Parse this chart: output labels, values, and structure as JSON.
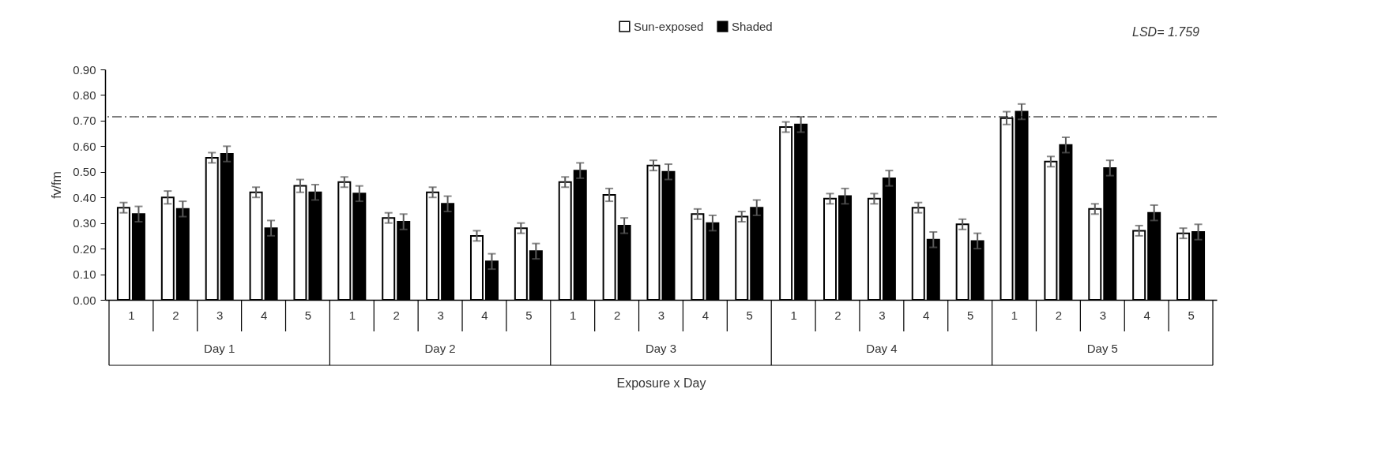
{
  "chart_data": {
    "type": "bar",
    "xlabel": "Exposure x Day",
    "ylabel": "fv/fm",
    "categories": [
      "1",
      "2",
      "3",
      "4",
      "5",
      "1",
      "2",
      "3",
      "4",
      "5",
      "1",
      "2",
      "3",
      "4",
      "5",
      "1",
      "2",
      "3",
      "4",
      "5",
      "1",
      "2",
      "3",
      "4",
      "5"
    ],
    "series": [
      {
        "name": "Sun-exposed",
        "color": "#ffffff",
        "values": [
          0.36,
          0.4,
          0.555,
          0.42,
          0.445,
          0.46,
          0.32,
          0.42,
          0.25,
          0.28,
          0.46,
          0.41,
          0.525,
          0.335,
          0.325,
          0.675,
          0.395,
          0.395,
          0.36,
          0.295,
          0.71,
          0.54,
          0.355,
          0.27,
          0.26
        ],
        "errors": [
          0.02,
          0.025,
          0.02,
          0.02,
          0.025,
          0.02,
          0.02,
          0.02,
          0.02,
          0.02,
          0.02,
          0.025,
          0.02,
          0.02,
          0.02,
          0.02,
          0.02,
          0.02,
          0.02,
          0.02,
          0.025,
          0.02,
          0.02,
          0.02,
          0.02
        ]
      },
      {
        "name": "Shaded",
        "color": "#000000",
        "values": [
          0.335,
          0.355,
          0.57,
          0.28,
          0.42,
          0.415,
          0.305,
          0.375,
          0.15,
          0.19,
          0.505,
          0.29,
          0.5,
          0.3,
          0.36,
          0.685,
          0.405,
          0.475,
          0.235,
          0.23,
          0.735,
          0.605,
          0.515,
          0.34,
          0.265
        ],
        "errors": [
          0.03,
          0.03,
          0.03,
          0.03,
          0.03,
          0.03,
          0.03,
          0.03,
          0.03,
          0.03,
          0.03,
          0.03,
          0.03,
          0.03,
          0.03,
          0.03,
          0.03,
          0.03,
          0.03,
          0.03,
          0.03,
          0.03,
          0.03,
          0.03,
          0.03
        ]
      }
    ],
    "ylim": [
      0,
      0.9
    ],
    "yticks": [
      {
        "value": 0,
        "label": "0.00"
      },
      {
        "value": 0.1,
        "label": "0.10"
      },
      {
        "value": 0.2,
        "label": "0.20"
      },
      {
        "value": 0.3,
        "label": "0.30"
      },
      {
        "value": 0.4,
        "label": "0.40"
      },
      {
        "value": 0.5,
        "label": "0.50"
      },
      {
        "value": 0.6,
        "label": "0.60"
      },
      {
        "value": 0.7,
        "label": "0.70"
      },
      {
        "value": 0.8,
        "label": "0.80"
      },
      {
        "value": 0.9,
        "label": "0.90"
      }
    ],
    "ref_lines": [
      {
        "axis": "y",
        "value": 0.715,
        "color": "#000000",
        "line_style": "dashed"
      }
    ],
    "annotations": [
      "LSD= 1.759",
      "Day 1",
      "Day 2",
      "Day 3",
      "Day 4",
      "Day 5"
    ],
    "legend": "top"
  }
}
